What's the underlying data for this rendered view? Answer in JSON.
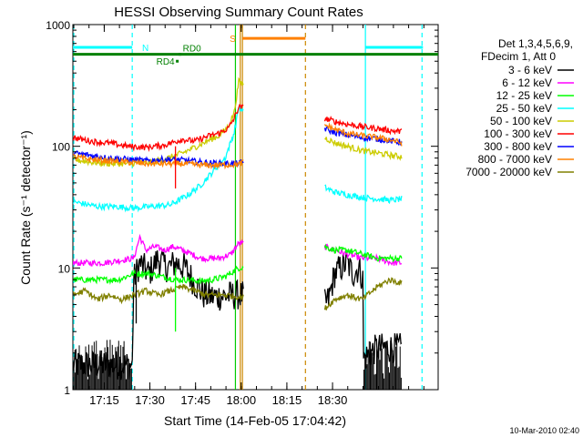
{
  "chart_data": {
    "type": "line",
    "title": "HESSI Observing Summary Count Rates",
    "ylabel": "Count Rate (s⁻¹ detector⁻¹)",
    "xlabel": "Start Time (14-Feb-05 17:04:42)",
    "footer": "10-Mar-2010 02:40",
    "y_scale": "log",
    "ylim": [
      1,
      1000
    ],
    "y_ticks": [
      {
        "value": 1,
        "label": "1"
      },
      {
        "value": 10,
        "label": "10"
      },
      {
        "value": 100,
        "label": "100"
      },
      {
        "value": 1000,
        "label": "1000"
      }
    ],
    "x_range_minutes": [
      0,
      120
    ],
    "x_ticks": [
      {
        "minute": 10.3,
        "label": "17:15"
      },
      {
        "minute": 25.3,
        "label": "17:30"
      },
      {
        "minute": 40.3,
        "label": "17:45"
      },
      {
        "minute": 55.3,
        "label": "18:00"
      },
      {
        "minute": 70.3,
        "label": "18:15"
      },
      {
        "minute": 85.3,
        "label": "18:30"
      }
    ],
    "legend": {
      "placement": "right",
      "header": [
        "Det 1,3,4,5,6,9,",
        "FDecim 1, Att 0"
      ]
    },
    "gap": [
      56.2,
      82.6
    ],
    "series": [
      {
        "name": "3 - 6 keV",
        "color": "#000000",
        "points": [
          [
            0,
            1.6
          ],
          [
            19.5,
            1.6
          ],
          [
            20,
            8
          ],
          [
            22,
            11
          ],
          [
            25,
            9
          ],
          [
            28,
            12
          ],
          [
            31,
            10
          ],
          [
            34,
            11
          ],
          [
            37,
            10
          ],
          [
            40,
            7.5
          ],
          [
            43,
            6
          ],
          [
            46,
            5.8
          ],
          [
            54.5,
            6
          ],
          [
            82.6,
            5
          ],
          [
            84,
            5.5
          ],
          [
            86,
            9
          ],
          [
            88,
            10
          ],
          [
            90,
            11
          ],
          [
            92,
            9
          ],
          [
            94,
            10
          ],
          [
            95.3,
            8
          ],
          [
            95.4,
            1.8
          ],
          [
            100,
            2.2
          ],
          [
            105,
            2.2
          ],
          [
            108,
            2.2
          ]
        ]
      },
      {
        "name": "6 - 12 keV",
        "color": "#ff00ff",
        "points": [
          [
            0,
            11
          ],
          [
            10,
            11
          ],
          [
            20,
            12
          ],
          [
            22,
            18
          ],
          [
            24,
            14
          ],
          [
            27,
            15
          ],
          [
            30,
            14
          ],
          [
            33,
            15
          ],
          [
            36,
            14
          ],
          [
            39,
            13
          ],
          [
            42,
            12
          ],
          [
            45,
            12
          ],
          [
            48,
            12
          ],
          [
            52,
            13
          ],
          [
            54.5,
            16
          ],
          [
            82.6,
            15
          ],
          [
            86,
            14
          ],
          [
            90,
            13
          ],
          [
            95,
            12
          ],
          [
            100,
            12
          ],
          [
            105,
            11
          ],
          [
            108,
            11
          ]
        ]
      },
      {
        "name": "12 - 25 keV",
        "color": "#00ff00",
        "points": [
          [
            0,
            8
          ],
          [
            10,
            8
          ],
          [
            15,
            8
          ],
          [
            20,
            9
          ],
          [
            25,
            9
          ],
          [
            29,
            8.5
          ],
          [
            34,
            8
          ],
          [
            38,
            8
          ],
          [
            42,
            7.8
          ],
          [
            46,
            8
          ],
          [
            50,
            8.5
          ],
          [
            54.5,
            10
          ],
          [
            82.6,
            15
          ],
          [
            86,
            14
          ],
          [
            90,
            14
          ],
          [
            95,
            13
          ],
          [
            100,
            12
          ],
          [
            105,
            12
          ],
          [
            108,
            12
          ]
        ]
      },
      {
        "name": "25 - 50 keV",
        "color": "#00ffff",
        "points": [
          [
            0,
            35
          ],
          [
            8,
            32
          ],
          [
            14,
            32
          ],
          [
            20,
            31
          ],
          [
            26,
            32
          ],
          [
            32,
            33
          ],
          [
            38,
            40
          ],
          [
            42,
            48
          ],
          [
            46,
            62
          ],
          [
            50,
            80
          ],
          [
            53,
            130
          ],
          [
            54.5,
            210
          ],
          [
            82.6,
            46
          ],
          [
            86,
            42
          ],
          [
            90,
            40
          ],
          [
            95,
            38
          ],
          [
            100,
            37
          ],
          [
            105,
            36
          ],
          [
            108,
            37
          ]
        ]
      },
      {
        "name": "50 - 100 keV",
        "color": "#cccc00",
        "points": [
          [
            0,
            78
          ],
          [
            6,
            74
          ],
          [
            12,
            72
          ],
          [
            18,
            72
          ],
          [
            24,
            73
          ],
          [
            30,
            78
          ],
          [
            36,
            88
          ],
          [
            40,
            98
          ],
          [
            44,
            110
          ],
          [
            48,
            122
          ],
          [
            51,
            145
          ],
          [
            53,
            190
          ],
          [
            54.5,
            340
          ],
          [
            82.6,
            118
          ],
          [
            86,
            107
          ],
          [
            90,
            100
          ],
          [
            95,
            92
          ],
          [
            100,
            88
          ],
          [
            105,
            84
          ],
          [
            108,
            82
          ]
        ]
      },
      {
        "name": "100 - 300 keV",
        "color": "#ff0000",
        "points": [
          [
            0,
            118
          ],
          [
            6,
            110
          ],
          [
            12,
            106
          ],
          [
            18,
            100
          ],
          [
            24,
            98
          ],
          [
            30,
            102
          ],
          [
            34,
            110
          ],
          [
            36,
            114
          ],
          [
            38,
            112
          ],
          [
            40,
            110
          ],
          [
            44,
            120
          ],
          [
            48,
            128
          ],
          [
            51,
            140
          ],
          [
            53,
            170
          ],
          [
            54.5,
            210
          ],
          [
            82.6,
            170
          ],
          [
            86,
            160
          ],
          [
            90,
            152
          ],
          [
            95,
            145
          ],
          [
            100,
            140
          ],
          [
            105,
            134
          ],
          [
            108,
            132
          ]
        ]
      },
      {
        "name": "300 - 800 keV",
        "color": "#0000ff",
        "points": [
          [
            0,
            88
          ],
          [
            6,
            84
          ],
          [
            12,
            80
          ],
          [
            18,
            78
          ],
          [
            24,
            76
          ],
          [
            30,
            78
          ],
          [
            36,
            77
          ],
          [
            42,
            74
          ],
          [
            48,
            72
          ],
          [
            54.5,
            72
          ],
          [
            82.6,
            140
          ],
          [
            86,
            130
          ],
          [
            90,
            124
          ],
          [
            95,
            118
          ],
          [
            100,
            115
          ],
          [
            105,
            110
          ],
          [
            108,
            108
          ]
        ]
      },
      {
        "name": "800 - 7000 keV",
        "color": "#ff8000",
        "points": [
          [
            0,
            82
          ],
          [
            6,
            78
          ],
          [
            12,
            76
          ],
          [
            18,
            74
          ],
          [
            24,
            72
          ],
          [
            30,
            72
          ],
          [
            36,
            72
          ],
          [
            42,
            70
          ],
          [
            48,
            70
          ],
          [
            54.5,
            71
          ],
          [
            82.6,
            150
          ],
          [
            86,
            138
          ],
          [
            90,
            128
          ],
          [
            95,
            122
          ],
          [
            100,
            118
          ],
          [
            105,
            112
          ],
          [
            108,
            106
          ]
        ]
      },
      {
        "name": "7000 - 20000 keV",
        "color": "#808000",
        "points": [
          [
            0,
            6
          ],
          [
            4,
            6.5
          ],
          [
            8,
            5.5
          ],
          [
            12,
            6
          ],
          [
            16,
            5.5
          ],
          [
            20,
            6
          ],
          [
            24,
            6.5
          ],
          [
            28,
            6
          ],
          [
            32,
            6.5
          ],
          [
            36,
            7
          ],
          [
            40,
            6.5
          ],
          [
            44,
            6
          ],
          [
            50,
            6
          ],
          [
            54.5,
            5.8
          ],
          [
            82.6,
            4.6
          ],
          [
            86,
            5.5
          ],
          [
            90,
            6
          ],
          [
            95,
            5.5
          ],
          [
            100,
            7
          ],
          [
            104,
            8
          ],
          [
            108,
            7.5
          ]
        ]
      }
    ],
    "annotations": {
      "spikes": [
        {
          "series": "100 - 300 keV",
          "minute": 33.7,
          "value": 45
        },
        {
          "series": "3 - 6 keV",
          "minute": 20.8,
          "value": 3.5
        },
        {
          "series": "12 - 25 keV",
          "minute": 33.7,
          "value": 3
        }
      ],
      "vertical_lines": [
        {
          "minute": 0.3,
          "color": "#00ffff",
          "dashed": true
        },
        {
          "minute": 19.5,
          "color": "#00ffff",
          "dashed": true
        },
        {
          "minute": 96.1,
          "color": "#00ffff",
          "dashed": false
        },
        {
          "minute": 114.7,
          "color": "#00ffff",
          "dashed": true
        },
        {
          "minute": 53.4,
          "color": "#00cc00",
          "dashed": false
        },
        {
          "minute": 55.0,
          "color": "#cc8800",
          "dashed": false
        },
        {
          "minute": 55.7,
          "color": "#cc8800",
          "dashed": false
        },
        {
          "minute": 76.4,
          "color": "#cc8800",
          "dashed": true
        }
      ],
      "bars": [
        {
          "label": "N",
          "color": "#00ffff",
          "from": 0,
          "to": 19.5,
          "value": 650
        },
        {
          "label": "",
          "color": "#00ffff",
          "from": 96.1,
          "to": 115,
          "value": 650
        },
        {
          "label": "S",
          "color": "#ff8000",
          "from": 55.7,
          "to": 76.4,
          "value": 770
        },
        {
          "label": "",
          "color": "#008000",
          "from": 0,
          "to": 120,
          "value": 570
        }
      ],
      "points": [
        {
          "label": "RD0",
          "color": "#008000",
          "minute": 35.2,
          "value": 570
        },
        {
          "label": "RD4",
          "color": "#008000",
          "minute": 34.3,
          "value": 500
        }
      ]
    }
  }
}
